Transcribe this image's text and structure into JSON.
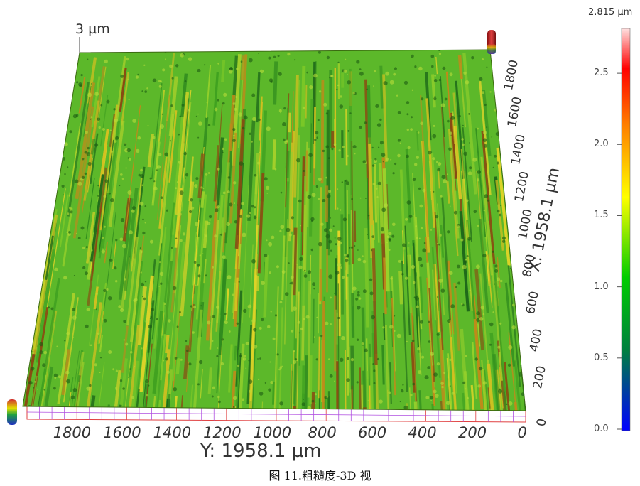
{
  "z_scale_label": "3 µm",
  "y_axis": {
    "title": "Y: 1958.1 µm",
    "ticks": [
      "1800",
      "1600",
      "1400",
      "1200",
      "1000",
      "800",
      "600",
      "400",
      "200",
      "0"
    ]
  },
  "x_axis": {
    "title": "X: 1958.1 µm",
    "ticks": [
      "0",
      "200",
      "400",
      "600",
      "800",
      "1000",
      "1200",
      "1400",
      "1600",
      "1800"
    ]
  },
  "colorbar": {
    "max_label": "2.815 µm",
    "ticks": [
      "0.0",
      "0.5",
      "1.0",
      "1.5",
      "2.0",
      "2.5"
    ],
    "colors": [
      "#0000ff",
      "#007f3f",
      "#00cc00",
      "#ffff00",
      "#ff7f00",
      "#ff0000",
      "#ffe0e0"
    ]
  },
  "caption": "图 11.粗糙度-3D 视"
}
